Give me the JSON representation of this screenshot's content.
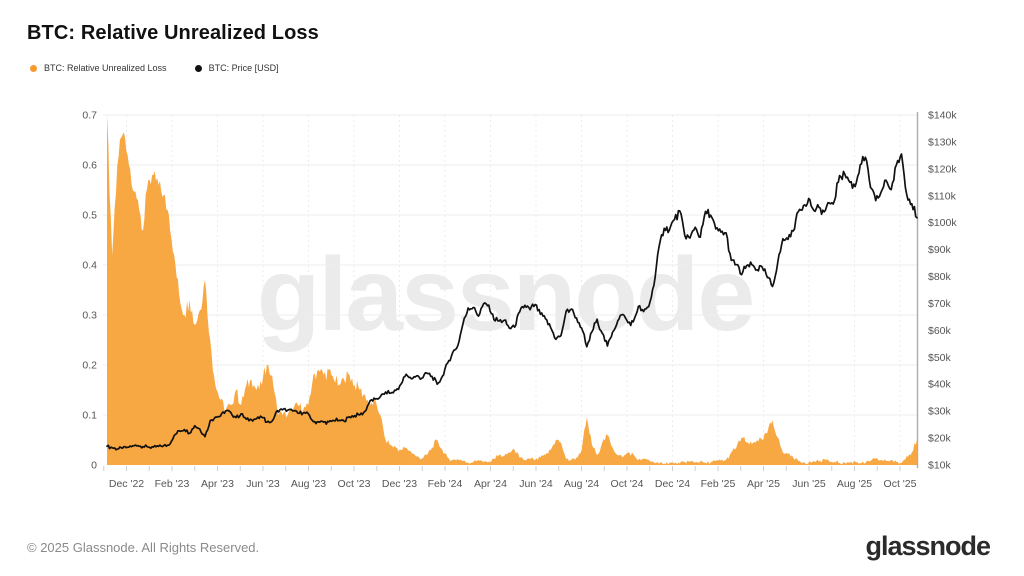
{
  "header": {
    "title": "BTC: Relative Unrealized Loss"
  },
  "legend": [
    {
      "label": "BTC: Relative Unrealized Loss",
      "color": "#F79A2E"
    },
    {
      "label": "BTC: Price [USD]",
      "color": "#111111"
    }
  ],
  "watermark": "glassnode",
  "footer": {
    "copyright": "© 2025 Glassnode. All Rights Reserved.",
    "brand": "glassnode"
  },
  "colors": {
    "area": "#F8A843",
    "price_line": "#111111",
    "grid": "#ededed",
    "axis_text": "#555555",
    "right_axis_line": "#adadad"
  },
  "chart_data": {
    "type": "area",
    "title": "BTC: Relative Unrealized Loss",
    "x": {
      "start": "Nov 2022",
      "end": "Nov 2025",
      "interval": "weekly",
      "tick_labels": [
        "Dec '22",
        "Feb '23",
        "Apr '23",
        "Jun '23",
        "Aug '23",
        "Oct '23",
        "Dec '23",
        "Feb '24",
        "Apr '24",
        "Jun '24",
        "Aug '24",
        "Oct '24",
        "Dec '24",
        "Feb '25",
        "Apr '25",
        "Jun '25",
        "Aug '25",
        "Oct '25"
      ]
    },
    "left_axis": {
      "label": "Relative Unrealized Loss",
      "range": [
        0,
        0.7
      ],
      "ticks": [
        0,
        0.1,
        0.2,
        0.3,
        0.4,
        0.5,
        0.6,
        0.7
      ]
    },
    "right_axis": {
      "label": "BTC Price [USD]",
      "range_usd": [
        10000,
        140000
      ],
      "tick_labels": [
        "$10k",
        "$20k",
        "$30k",
        "$40k",
        "$50k",
        "$60k",
        "$70k",
        "$80k",
        "$90k",
        "$100k",
        "$110k",
        "$120k",
        "$130k",
        "$140k"
      ]
    },
    "grid": true,
    "legend_position": "top-left",
    "series": [
      {
        "name": "BTC: Relative Unrealized Loss",
        "type": "area",
        "axis": "left",
        "color": "#F8A843",
        "values": [
          0.7,
          0.42,
          0.6,
          0.66,
          0.62,
          0.55,
          0.53,
          0.47,
          0.57,
          0.58,
          0.56,
          0.54,
          0.5,
          0.42,
          0.34,
          0.3,
          0.33,
          0.28,
          0.31,
          0.37,
          0.25,
          0.16,
          0.13,
          0.11,
          0.12,
          0.15,
          0.12,
          0.16,
          0.17,
          0.15,
          0.16,
          0.2,
          0.18,
          0.11,
          0.1,
          0.1,
          0.11,
          0.12,
          0.11,
          0.12,
          0.18,
          0.19,
          0.18,
          0.19,
          0.17,
          0.16,
          0.17,
          0.18,
          0.16,
          0.15,
          0.14,
          0.12,
          0.13,
          0.1,
          0.05,
          0.04,
          0.035,
          0.03,
          0.035,
          0.025,
          0.017,
          0.013,
          0.02,
          0.035,
          0.05,
          0.03,
          0.015,
          0.01,
          0.012,
          0.008,
          0.005,
          0.006,
          0.01,
          0.006,
          0.007,
          0.012,
          0.02,
          0.018,
          0.025,
          0.03,
          0.014,
          0.01,
          0.012,
          0.01,
          0.015,
          0.02,
          0.03,
          0.05,
          0.045,
          0.012,
          0.01,
          0.015,
          0.03,
          0.095,
          0.04,
          0.02,
          0.045,
          0.06,
          0.035,
          0.02,
          0.015,
          0.025,
          0.022,
          0.01,
          0.012,
          0.01,
          0.005,
          0.003,
          0.003,
          0.004,
          0.003,
          0.003,
          0.006,
          0.007,
          0.005,
          0.007,
          0.004,
          0.005,
          0.008,
          0.009,
          0.01,
          0.025,
          0.035,
          0.055,
          0.045,
          0.042,
          0.05,
          0.05,
          0.065,
          0.09,
          0.055,
          0.025,
          0.022,
          0.015,
          0.008,
          0.006,
          0.005,
          0.008,
          0.007,
          0.012,
          0.007,
          0.007,
          0.004,
          0.004,
          0.005,
          0.007,
          0.004,
          0.004,
          0.008,
          0.012,
          0.01,
          0.008,
          0.01,
          0.006,
          0.004,
          0.018,
          0.025,
          0.05
        ]
      },
      {
        "name": "BTC: Price [USD]",
        "type": "line",
        "axis": "right",
        "color": "#111111",
        "values_usd_thousands": [
          17.0,
          16.4,
          15.9,
          16.2,
          16.6,
          17.1,
          17.2,
          16.8,
          16.6,
          16.7,
          16.9,
          17.2,
          17.4,
          20.9,
          22.7,
          23.2,
          21.8,
          24.6,
          23.3,
          20.5,
          26.5,
          27.8,
          28.2,
          30.1,
          29.5,
          27.6,
          29.0,
          27.0,
          26.8,
          27.2,
          27.7,
          25.9,
          26.3,
          30.2,
          30.5,
          30.3,
          30.1,
          29.2,
          29.3,
          29.1,
          26.1,
          26.0,
          25.9,
          26.0,
          26.5,
          26.6,
          26.2,
          27.9,
          28.3,
          28.6,
          29.9,
          33.9,
          34.5,
          35.4,
          37.1,
          36.7,
          37.7,
          40.1,
          43.7,
          42.0,
          43.1,
          42.2,
          44.1,
          42.9,
          40.0,
          43.0,
          47.8,
          51.8,
          54.3,
          62.5,
          68.3,
          68.5,
          65.3,
          69.9,
          69.4,
          64.0,
          63.5,
          63.8,
          60.8,
          61.2,
          66.9,
          69.3,
          67.7,
          69.6,
          66.0,
          64.3,
          61.0,
          56.7,
          58.1,
          67.2,
          67.9,
          64.6,
          60.9,
          53.9,
          59.5,
          64.1,
          58.9,
          54.2,
          59.4,
          63.6,
          65.9,
          62.8,
          63.2,
          68.9,
          67.0,
          68.8,
          76.7,
          91.0,
          97.9,
          97.3,
          101.2,
          104.4,
          95.2,
          94.3,
          98.3,
          94.6,
          104.2,
          102.8,
          97.7,
          96.5,
          96.2,
          86.0,
          84.4,
          80.7,
          84.1,
          84.4,
          82.5,
          83.5,
          79.6,
          76.3,
          85.1,
          94.0,
          93.8,
          96.9,
          104.1,
          106.4,
          109.0,
          104.6,
          105.7,
          104.0,
          107.3,
          108.2,
          117.5,
          118.0,
          115.0,
          113.4,
          121.5,
          124.3,
          113.0,
          108.2,
          111.2,
          115.8,
          112.3,
          121.5,
          125.5,
          110.5,
          107.0,
          101.8
        ]
      }
    ]
  }
}
